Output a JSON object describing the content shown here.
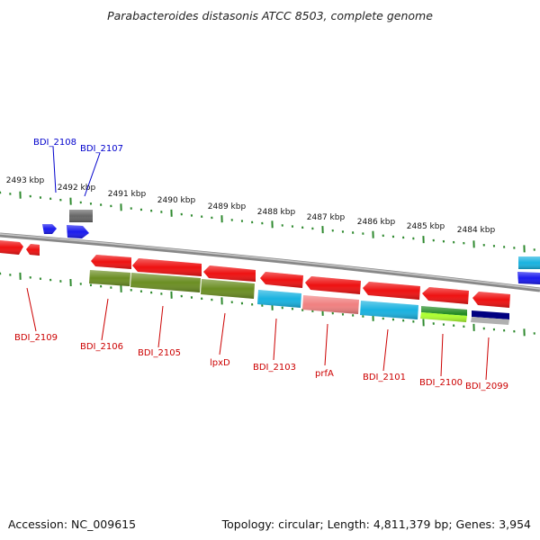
{
  "title": "Parabacteroides distasonis ATCC 8503, complete genome",
  "footer": {
    "accession": "Accession: NC_009615",
    "summary": "Topology: circular; Length: 4,811,379 bp; Genes: 3,954"
  },
  "colors": {
    "backbone": "#8a8a8a",
    "ticks": "#2f8a2f",
    "label_forward": "#0000cc",
    "label_reverse": "#cc0000"
  },
  "scale_ticks": [
    {
      "label": "2493 kbp",
      "kbp": 2493
    },
    {
      "label": "2492 kbp",
      "kbp": 2492
    },
    {
      "label": "2491 kbp",
      "kbp": 2491
    },
    {
      "label": "2490 kbp",
      "kbp": 2490
    },
    {
      "label": "2489 kbp",
      "kbp": 2489
    },
    {
      "label": "2488 kbp",
      "kbp": 2488
    },
    {
      "label": "2487 kbp",
      "kbp": 2487
    },
    {
      "label": "2486 kbp",
      "kbp": 2486
    },
    {
      "label": "2485 kbp",
      "kbp": 2485
    },
    {
      "label": "2484 kbp",
      "kbp": 2484
    }
  ],
  "genes": [
    {
      "label": "BDI_2108",
      "strand": "forward",
      "color": "#1a1aee",
      "category_color": ""
    },
    {
      "label": "BDI_2107",
      "strand": "forward",
      "color": "#1a1aee",
      "category_color": "#666666"
    },
    {
      "label": "BDI_2109",
      "strand": "reverse",
      "color": "#ee1111",
      "category_color": ""
    },
    {
      "label": "BDI_2106",
      "strand": "reverse",
      "color": "#ee1111",
      "category_color": "#6b8e23"
    },
    {
      "label": "BDI_2105",
      "strand": "reverse",
      "color": "#ee1111",
      "category_color": "#6b8e23"
    },
    {
      "label": "lpxD",
      "strand": "reverse",
      "color": "#ee1111",
      "category_color": "#6b8e23"
    },
    {
      "label": "BDI_2103",
      "strand": "reverse",
      "color": "#ee1111",
      "category_color": "#19b2e0"
    },
    {
      "label": "prfA",
      "strand": "reverse",
      "color": "#ee1111",
      "category_color": "#f08080"
    },
    {
      "label": "BDI_2101",
      "strand": "reverse",
      "color": "#ee1111",
      "category_color": "#19b2e0"
    },
    {
      "label": "BDI_2100",
      "strand": "reverse",
      "color": "#ee1111",
      "category_color": "#228b22"
    },
    {
      "label": "BDI_2099",
      "strand": "reverse",
      "color": "#ee1111",
      "category_color": "#000080"
    }
  ],
  "unlabeled_edge_features": [
    {
      "strand": "forward",
      "color": "#1a1aee",
      "category_color": "#19b2e0"
    }
  ]
}
